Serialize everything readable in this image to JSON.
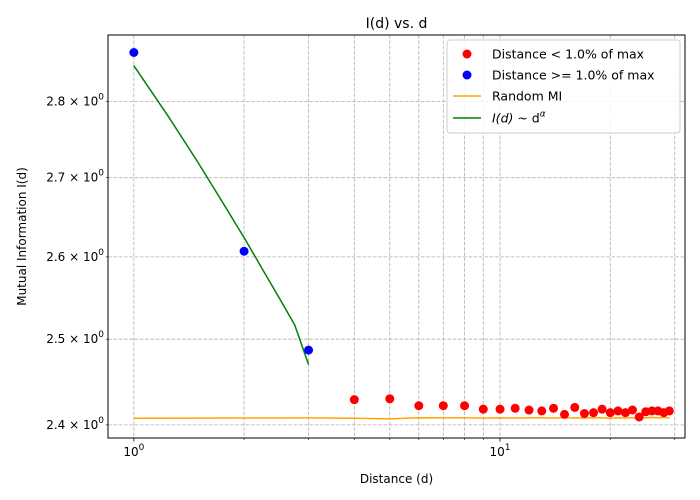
{
  "chart_data": {
    "type": "scatter",
    "title": "I(d) vs. d",
    "xlabel": "Distance (d)",
    "ylabel": "Mutual Information I(d)",
    "xscale": "log",
    "yscale": "log",
    "xlim": [
      0.85,
      32
    ],
    "ylim": [
      2.385,
      2.89
    ],
    "grid": true,
    "legend_position": "top-right",
    "x_ticks": [
      {
        "value": 1,
        "base": "10",
        "exp": "0"
      },
      {
        "value": 10,
        "base": "10",
        "exp": "1"
      }
    ],
    "y_ticks": [
      {
        "value": 2.4,
        "mant": "2.4",
        "exp": "0"
      },
      {
        "value": 2.5,
        "mant": "2.5",
        "exp": "0"
      },
      {
        "value": 2.6,
        "mant": "2.6",
        "exp": "0"
      },
      {
        "value": 2.7,
        "mant": "2.7",
        "exp": "0"
      },
      {
        "value": 2.8,
        "mant": "2.8",
        "exp": "0"
      }
    ],
    "series": [
      {
        "name": "Distance < 1.0% of max",
        "kind": "scatter",
        "color": "#ff0000",
        "x": [
          4,
          5,
          6,
          7,
          8,
          9,
          10,
          11,
          12,
          13,
          14,
          15,
          16,
          17,
          18,
          19,
          20,
          21,
          22,
          23,
          24,
          25,
          26,
          27,
          28,
          29
        ],
        "y": [
          2.429,
          2.43,
          2.422,
          2.422,
          2.422,
          2.418,
          2.418,
          2.419,
          2.417,
          2.416,
          2.419,
          2.412,
          2.42,
          2.413,
          2.414,
          2.418,
          2.414,
          2.416,
          2.414,
          2.417,
          2.409,
          2.415,
          2.416,
          2.416,
          2.414,
          2.416
        ]
      },
      {
        "name": "Distance >= 1.0% of max",
        "kind": "scatter",
        "color": "#0000ff",
        "x": [
          1,
          2,
          3
        ],
        "y": [
          2.866,
          2.607,
          2.487
        ]
      },
      {
        "name": "Random MI",
        "kind": "line",
        "color": "#ffa500",
        "x": [
          1,
          2,
          3,
          4,
          5,
          6,
          7,
          8,
          9,
          10,
          11,
          12,
          13,
          14,
          15,
          16,
          17,
          18,
          19,
          20,
          21,
          22,
          23,
          24,
          25,
          26,
          27,
          28,
          29
        ],
        "y": [
          2.4075,
          2.4078,
          2.408,
          2.4075,
          2.4068,
          2.4082,
          2.408,
          2.408,
          2.4078,
          2.408,
          2.4078,
          2.408,
          2.408,
          2.4078,
          2.408,
          2.408,
          2.4078,
          2.408,
          2.408,
          2.4075,
          2.408,
          2.408,
          2.408,
          2.408,
          2.408,
          2.4085,
          2.408,
          2.4085,
          2.408
        ]
      },
      {
        "name_prefix": "I(d)",
        "name_mid": " ~ d",
        "name_sup": "α",
        "kind": "line",
        "color": "#008000",
        "x": [
          1,
          1.25,
          1.5,
          1.75,
          2,
          2.25,
          2.5,
          2.75,
          3
        ],
        "y": [
          2.848,
          2.778,
          2.719,
          2.668,
          2.624,
          2.584,
          2.549,
          2.517,
          2.47
        ]
      }
    ]
  }
}
